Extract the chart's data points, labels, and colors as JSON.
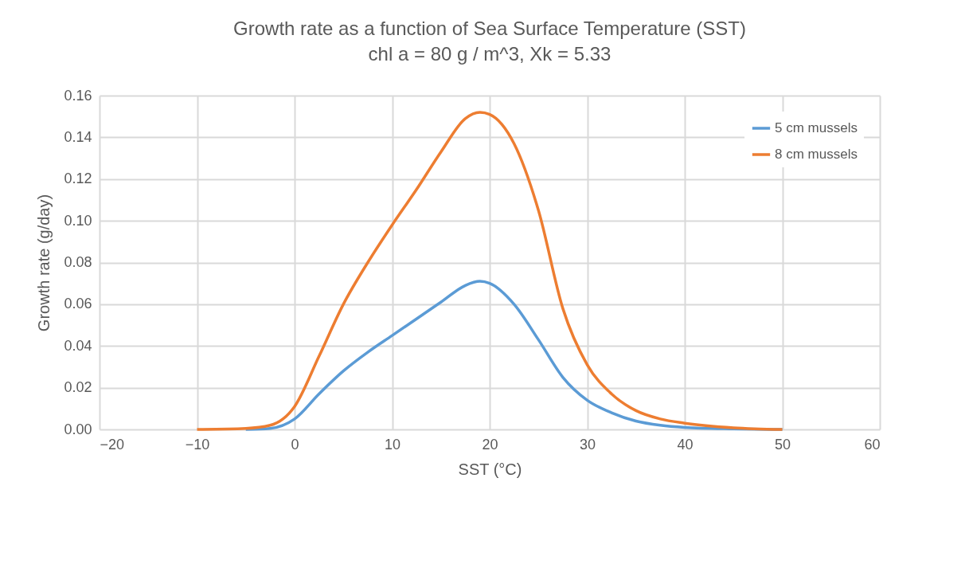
{
  "chart_data": {
    "type": "line",
    "title": "Growth rate as a function of Sea Surface Temperature (SST)",
    "subtitle": "chl a = 80 g / m^3, Xk = 5.33",
    "xlabel": "SST (°C)",
    "ylabel": "Growth rate (g/day)",
    "xlim": [
      -20,
      60
    ],
    "xticks": [
      -20,
      -10,
      0,
      10,
      20,
      30,
      40,
      50,
      60
    ],
    "ylim": [
      0,
      0.16
    ],
    "yticks": [
      {
        "value": 0,
        "label": "0.00"
      },
      {
        "value": 0.02,
        "label": "0.02"
      },
      {
        "value": 0.04,
        "label": "0.04"
      },
      {
        "value": 0.06,
        "label": "0.06"
      },
      {
        "value": 0.08,
        "label": "0.08"
      },
      {
        "value": 0.1,
        "label": "0.10"
      },
      {
        "value": 0.12,
        "label": "0.12"
      },
      {
        "value": 0.14,
        "label": "0.14"
      },
      {
        "value": 0.16,
        "label": "0.16"
      }
    ],
    "grid": true,
    "legend": "top right",
    "marker": "none",
    "line_style": "solid",
    "series": [
      {
        "name": "5 cm mussels",
        "color": "#5b9bd5",
        "x": [
          -5,
          -2.5,
          0,
          2.5,
          5,
          7.5,
          10,
          12.5,
          15,
          17.5,
          19,
          20,
          22.5,
          25,
          27.5,
          30,
          32.5,
          35,
          37.5,
          40,
          45,
          50
        ],
        "values": [
          0,
          0.0005,
          0.005,
          0.017,
          0.028,
          0.037,
          0.045,
          0.053,
          0.061,
          0.069,
          0.071,
          0.07,
          0.06,
          0.043,
          0.025,
          0.014,
          0.008,
          0.004,
          0.002,
          0.001,
          0.0003,
          0
        ]
      },
      {
        "name": "8 cm mussels",
        "color": "#ed7d31",
        "x": [
          -10,
          -5,
          -2.5,
          0,
          2.5,
          5,
          7.5,
          10,
          12.5,
          15,
          17.5,
          19,
          20,
          22.5,
          25,
          27.5,
          30,
          32.5,
          35,
          37.5,
          40,
          45,
          50
        ],
        "values": [
          0,
          0.0005,
          0.002,
          0.011,
          0.035,
          0.06,
          0.08,
          0.098,
          0.115,
          0.133,
          0.149,
          0.152,
          0.151,
          0.137,
          0.105,
          0.058,
          0.031,
          0.017,
          0.009,
          0.005,
          0.003,
          0.0008,
          0
        ]
      }
    ]
  }
}
